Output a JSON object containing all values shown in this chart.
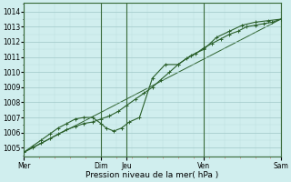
{
  "bg_color": "#d0eeee",
  "grid_major_color": "#a0c8c8",
  "grid_minor_color": "#b8dcdc",
  "line_color": "#2a5f2a",
  "xlabel": "Pression niveau de la mer( hPa )",
  "ylim": [
    1004.4,
    1014.6
  ],
  "yticks": [
    1005,
    1006,
    1007,
    1008,
    1009,
    1010,
    1011,
    1012,
    1013,
    1014
  ],
  "x_day_ticks": [
    0,
    3,
    4,
    7,
    10
  ],
  "x_day_labels": [
    "Mer",
    "Dim",
    "Jeu",
    "Ven",
    "Sam"
  ],
  "xlim": [
    0,
    10
  ],
  "line1_x": [
    0.0,
    0.33,
    0.67,
    1.0,
    1.33,
    1.67,
    2.0,
    2.33,
    2.67,
    3.0,
    3.33,
    3.67,
    4.0,
    4.33,
    4.67,
    5.0,
    5.33,
    5.67,
    6.0,
    6.33,
    6.67,
    7.0,
    7.33,
    7.67,
    8.0,
    8.33,
    8.67,
    9.0,
    9.33,
    9.67,
    10.0
  ],
  "line1_y": [
    1004.7,
    1005.0,
    1005.3,
    1005.6,
    1005.9,
    1006.2,
    1006.4,
    1006.6,
    1006.7,
    1006.9,
    1007.1,
    1007.4,
    1007.8,
    1008.2,
    1008.6,
    1009.0,
    1009.5,
    1010.0,
    1010.5,
    1010.9,
    1011.2,
    1011.6,
    1011.9,
    1012.2,
    1012.5,
    1012.7,
    1013.0,
    1013.1,
    1013.2,
    1013.3,
    1013.5
  ],
  "line2_x": [
    0.0,
    0.33,
    0.67,
    1.0,
    1.33,
    1.67,
    2.0,
    2.33,
    2.67,
    3.0,
    3.2,
    3.5,
    3.8,
    4.1,
    4.5,
    5.0,
    5.5,
    6.0,
    6.5,
    7.0,
    7.5,
    8.0,
    8.5,
    9.0,
    9.5,
    10.0
  ],
  "line2_y": [
    1004.7,
    1005.1,
    1005.5,
    1005.9,
    1006.3,
    1006.6,
    1006.9,
    1007.0,
    1007.0,
    1006.6,
    1006.3,
    1006.1,
    1006.3,
    1006.7,
    1007.0,
    1009.6,
    1010.5,
    1010.5,
    1011.1,
    1011.5,
    1012.3,
    1012.7,
    1013.1,
    1013.3,
    1013.4,
    1013.5
  ],
  "line3_x": [
    0.0,
    10.0
  ],
  "line3_y": [
    1004.7,
    1013.5
  ]
}
